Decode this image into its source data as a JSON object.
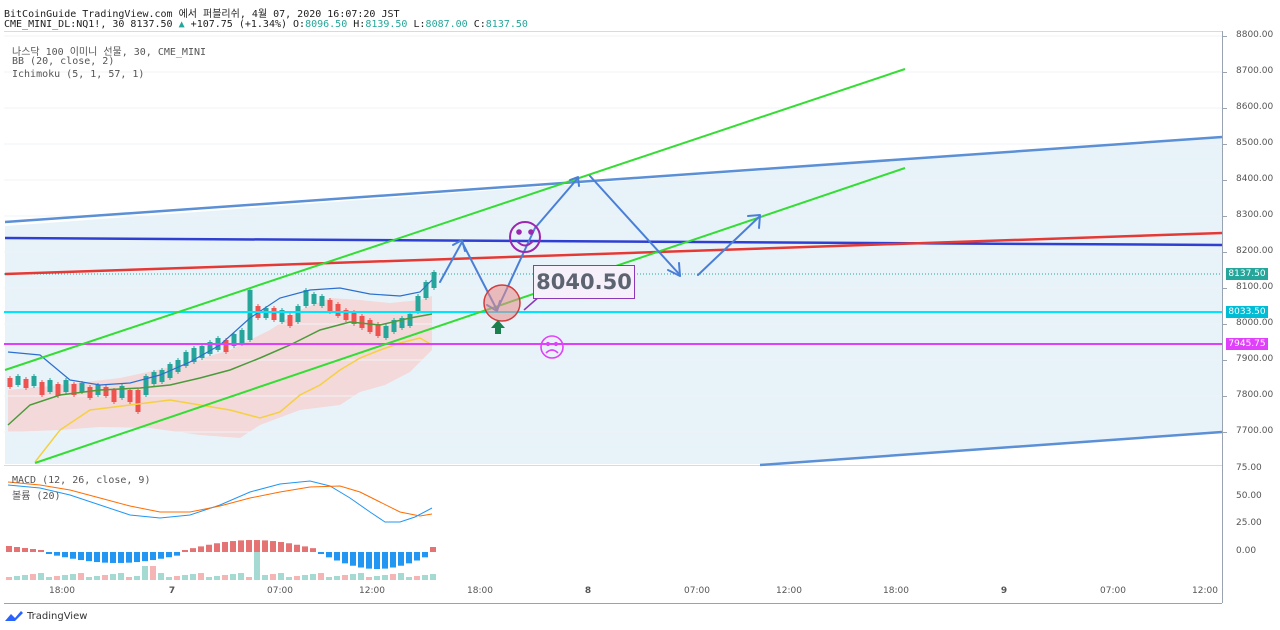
{
  "header": {
    "line1": "BitCoinGuide TradingView.com 에서 퍼블리쉬, 4월 07, 2020 16:07:20 JST",
    "symbol": "CME_MINI_DL:NQ1!, 30 8137.50",
    "change": "+107.75 (+1.34%)",
    "o_label": "O:",
    "o_value": "8096.50",
    "h_label": "H:",
    "h_value": "8139.50",
    "l_label": "L:",
    "l_value": "8087.00",
    "c_label": "C:",
    "c_value": "8137.50"
  },
  "legend": {
    "title": "나스닥 100 이미니 선물, 30, CME_MINI",
    "bb": "BB (20, close, 2)",
    "ichimoku": "Ichimoku (5, 1, 57, 1)",
    "macd": "MACD (12, 26, close, 9)",
    "volume": "볼륨 (20)"
  },
  "price_axis": [
    "8800.00",
    "8700.00",
    "8600.00",
    "8500.00",
    "8400.00",
    "8300.00",
    "8200.00",
    "8100.00",
    "8000.00",
    "7900.00",
    "7800.00",
    "7700.00"
  ],
  "macd_axis": [
    "75.00",
    "50.00",
    "25.00",
    "0.00"
  ],
  "price_labels": [
    {
      "text": "8137.50",
      "color": "#26a69a"
    },
    {
      "text": "8033.50",
      "color": "#00bcd4"
    },
    {
      "text": "7945.75",
      "color": "#e040fb"
    }
  ],
  "time_axis": [
    "18:00",
    "7",
    "07:00",
    "12:00",
    "18:00",
    "8",
    "07:00",
    "12:00",
    "18:00",
    "9",
    "07:00",
    "12:00"
  ],
  "annotation": "8040.50",
  "branding": "TradingView",
  "colors": {
    "up": "#26a69a",
    "down": "#ef5350",
    "channel": "#33dd33",
    "trend_blue": "#5b8fd6",
    "resistance": "#2f3fd1",
    "red_line": "#e53935",
    "cyan": "#00e5ff",
    "magenta": "#e040fb",
    "arrow": "#4a7fd8",
    "macd": "#2196f3",
    "signal": "#ff6d00"
  },
  "icons": [
    "smiley-icon",
    "frown-icon",
    "green-up-arrow-icon",
    "tradingview-logo-icon"
  ]
}
